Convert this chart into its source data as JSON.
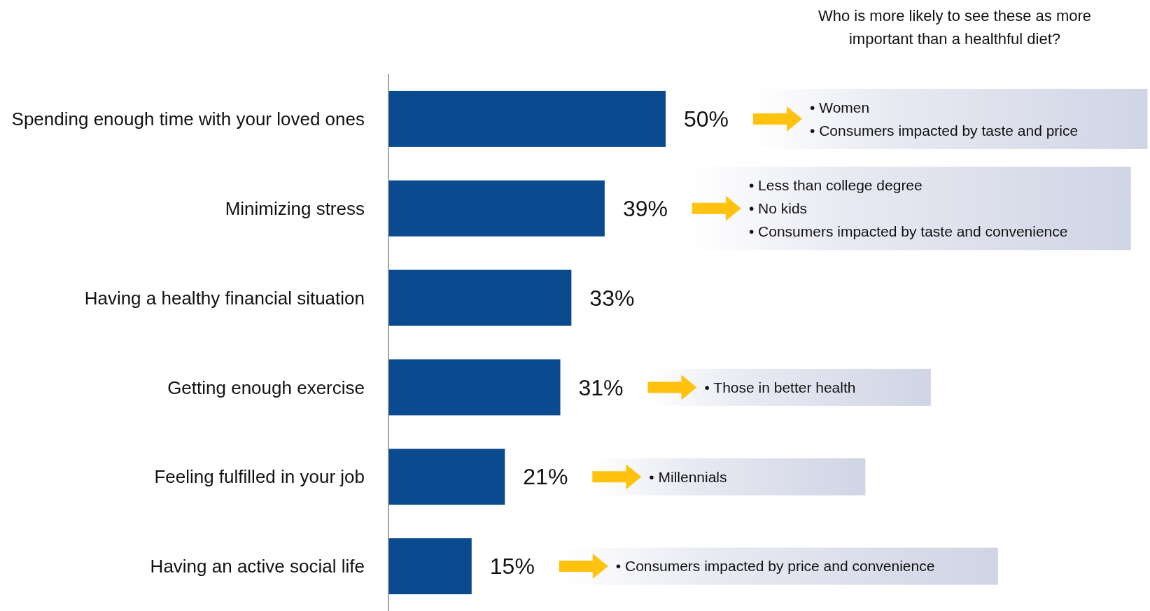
{
  "chart_data": {
    "type": "bar",
    "orientation": "horizontal",
    "title": "Who is more likely to see these as more important than a healthful diet?",
    "categories": [
      "Spending enough time with your loved ones",
      "Minimizing stress",
      "Having a healthy financial situation",
      "Getting enough exercise",
      "Feeling fulfilled in your job",
      "Having an active social life"
    ],
    "values": [
      50,
      39,
      33,
      31,
      21,
      15
    ],
    "value_labels": [
      "50%",
      "39%",
      "33%",
      "31%",
      "21%",
      "15%"
    ],
    "color": "#0a4a8f",
    "tick_labels": "y",
    "annotations": [
      "• Women",
      "• Consumers impacted by taste and price",
      "• Less than college degree",
      "• No kids",
      "• Consumers impacted by taste and convenience",
      "• Those in better health",
      "• Millennials",
      "• Consumers impacted by price and convenience"
    ]
  }
}
